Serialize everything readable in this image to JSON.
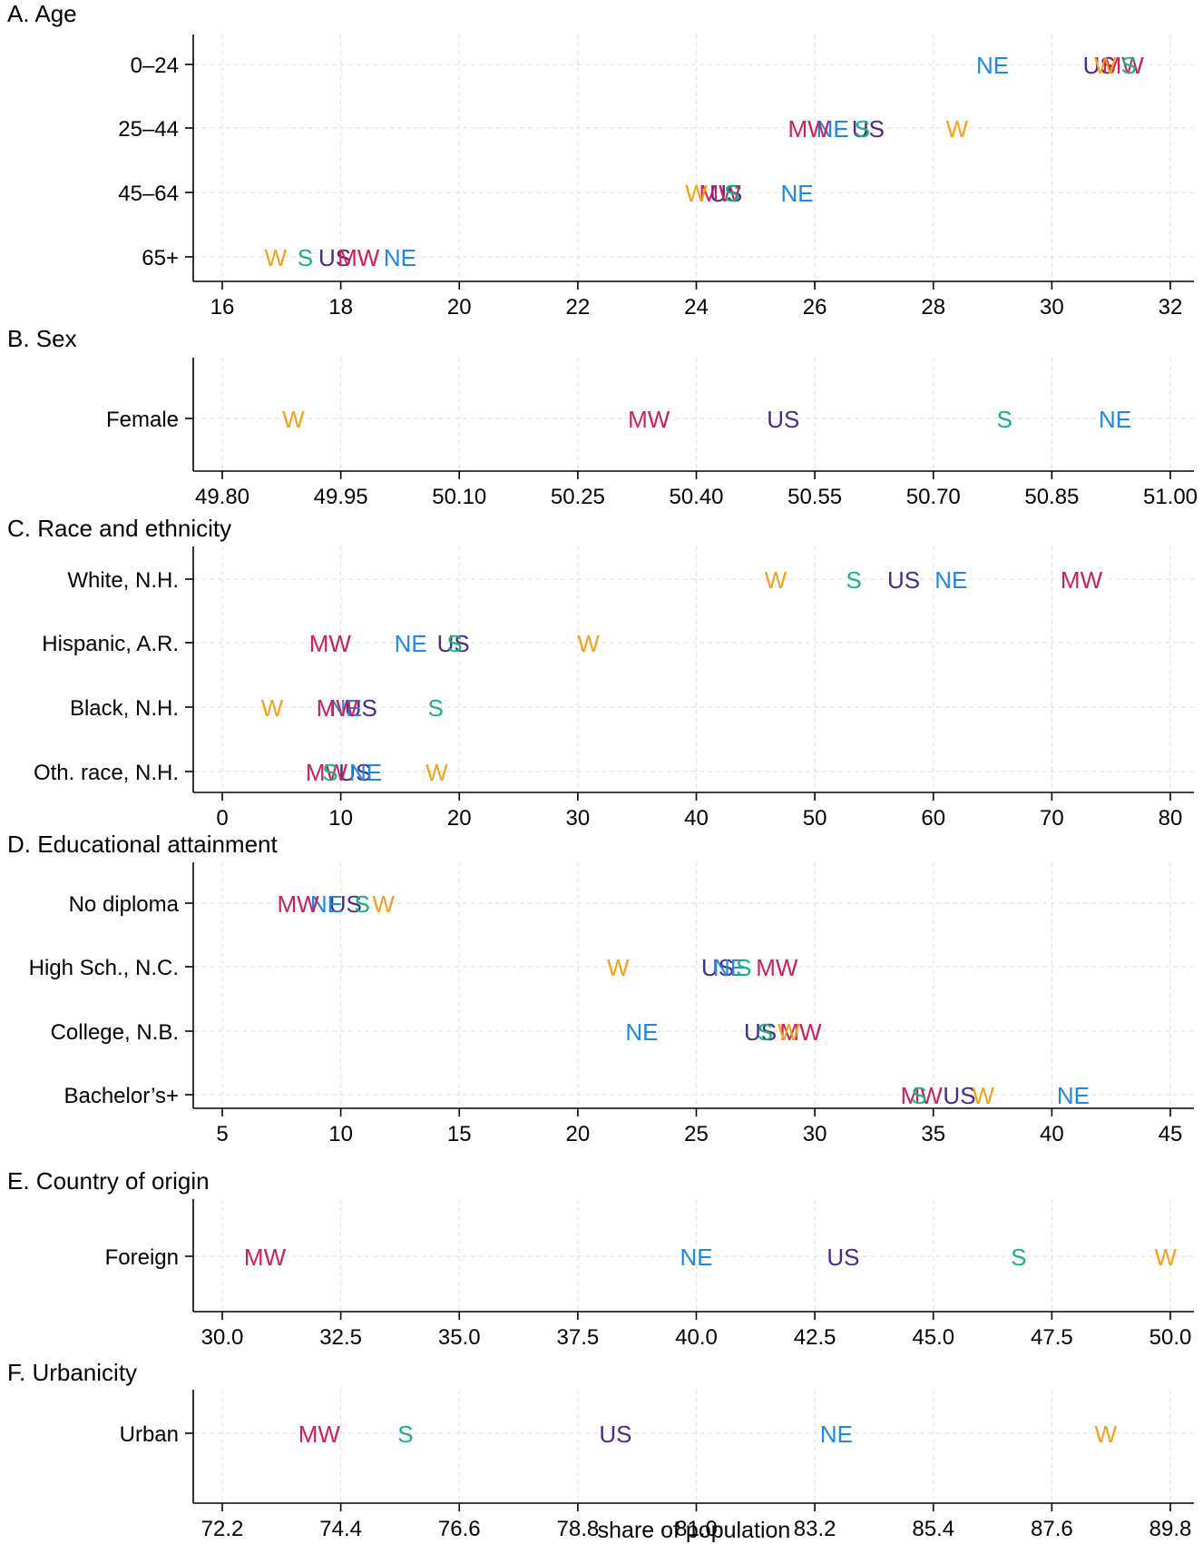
{
  "colors": {
    "US": "#4b2a8c",
    "NE": "#1e88e5",
    "MW": "#cc1f5c",
    "S": "#19b47d",
    "W": "#f5a01a"
  },
  "chart_data": [
    {
      "type": "scatter",
      "title": "A. Age",
      "xlim": [
        16,
        32
      ],
      "xticks": [
        "16",
        "18",
        "20",
        "22",
        "24",
        "26",
        "28",
        "30",
        "32"
      ],
      "categories": [
        "0–24",
        "25–44",
        "45–64",
        "65+"
      ],
      "series": [
        {
          "name": "US",
          "values": [
            30.8,
            26.9,
            24.5,
            17.9
          ]
        },
        {
          "name": "NE",
          "values": [
            29.0,
            26.3,
            25.7,
            19.0
          ]
        },
        {
          "name": "MW",
          "values": [
            31.2,
            25.9,
            24.4,
            18.3
          ]
        },
        {
          "name": "S",
          "values": [
            31.3,
            26.8,
            24.6,
            17.4
          ]
        },
        {
          "name": "W",
          "values": [
            30.9,
            28.4,
            24.0,
            16.9
          ]
        }
      ]
    },
    {
      "type": "scatter",
      "title": "B. Sex",
      "xlim": [
        49.8,
        51.0
      ],
      "xticks": [
        "49.80",
        "49.95",
        "50.10",
        "50.25",
        "50.40",
        "50.55",
        "50.70",
        "50.85",
        "51.00"
      ],
      "categories": [
        "Female"
      ],
      "series": [
        {
          "name": "US",
          "values": [
            50.51
          ]
        },
        {
          "name": "NE",
          "values": [
            50.93
          ]
        },
        {
          "name": "MW",
          "values": [
            50.34
          ]
        },
        {
          "name": "S",
          "values": [
            50.79
          ]
        },
        {
          "name": "W",
          "values": [
            49.89
          ]
        }
      ]
    },
    {
      "type": "scatter",
      "title": "C. Race and ethnicity",
      "xlim": [
        0,
        80
      ],
      "xticks": [
        "0",
        "10",
        "20",
        "30",
        "40",
        "50",
        "60",
        "70",
        "80"
      ],
      "categories": [
        "White, N.H.",
        "Hispanic, A.R.",
        "Black, N.H.",
        "Oth. race, N.H."
      ],
      "series": [
        {
          "name": "US",
          "values": [
            57.5,
            19.5,
            11.7,
            11.2
          ]
        },
        {
          "name": "NE",
          "values": [
            61.5,
            15.9,
            10.4,
            12.1
          ]
        },
        {
          "name": "MW",
          "values": [
            72.5,
            9.1,
            9.7,
            8.8
          ]
        },
        {
          "name": "S",
          "values": [
            53.3,
            19.6,
            18.0,
            9.1
          ]
        },
        {
          "name": "W",
          "values": [
            46.7,
            30.9,
            4.2,
            18.1
          ]
        }
      ]
    },
    {
      "type": "scatter",
      "title": "D. Educational attainment",
      "xlim": [
        5,
        45
      ],
      "xticks": [
        "5",
        "10",
        "15",
        "20",
        "25",
        "30",
        "35",
        "40",
        "45"
      ],
      "categories": [
        "No diploma",
        "High Sch., N.C.",
        "College, N.B.",
        "Bachelor’s+"
      ],
      "series": [
        {
          "name": "US",
          "values": [
            10.2,
            25.9,
            27.7,
            36.1
          ]
        },
        {
          "name": "NE",
          "values": [
            9.4,
            26.4,
            22.7,
            40.9
          ]
        },
        {
          "name": "MW",
          "values": [
            8.2,
            28.4,
            29.4,
            34.5
          ]
        },
        {
          "name": "S",
          "values": [
            10.9,
            27.0,
            27.9,
            34.4
          ]
        },
        {
          "name": "W",
          "values": [
            11.8,
            21.7,
            28.9,
            37.1
          ]
        }
      ]
    },
    {
      "type": "scatter",
      "title": "E. Country of origin",
      "xlim": [
        30,
        50
      ],
      "xticks": [
        "30.0",
        "32.5",
        "35.0",
        "37.5",
        "40.0",
        "42.5",
        "45.0",
        "47.5",
        "50.0"
      ],
      "categories": [
        "Foreign"
      ],
      "series": [
        {
          "name": "US",
          "values": [
            43.1
          ]
        },
        {
          "name": "NE",
          "values": [
            40.0
          ]
        },
        {
          "name": "MW",
          "values": [
            30.9
          ]
        },
        {
          "name": "S",
          "values": [
            46.8
          ]
        },
        {
          "name": "W",
          "values": [
            49.9
          ]
        }
      ]
    },
    {
      "type": "scatter",
      "title": "F. Urbanicity",
      "xlim": [
        72.2,
        89.8
      ],
      "xticks": [
        "72.2",
        "74.4",
        "76.6",
        "78.8",
        "81.0",
        "83.2",
        "85.4",
        "87.6",
        "89.8"
      ],
      "categories": [
        "Urban"
      ],
      "series": [
        {
          "name": "US",
          "values": [
            79.5
          ]
        },
        {
          "name": "NE",
          "values": [
            83.6
          ]
        },
        {
          "name": "MW",
          "values": [
            74.0
          ]
        },
        {
          "name": "S",
          "values": [
            75.6
          ]
        },
        {
          "name": "W",
          "values": [
            88.6
          ]
        }
      ]
    }
  ],
  "xlabel": "share of population"
}
